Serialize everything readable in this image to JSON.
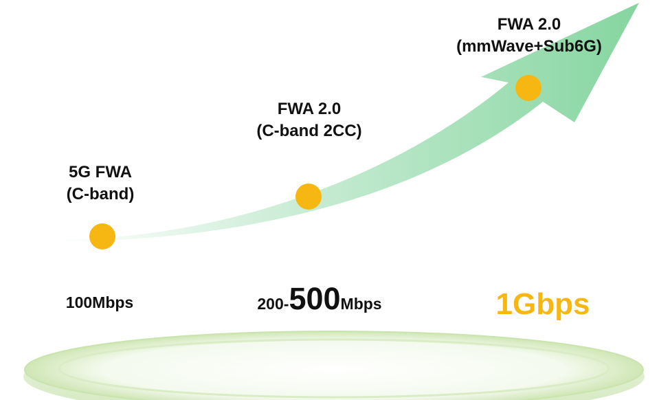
{
  "stages": [
    {
      "line1": "5G FWA",
      "line2": "(C-band)"
    },
    {
      "line1": "FWA 2.0",
      "line2": "(C-band 2CC)"
    },
    {
      "line1": "FWA 2.0",
      "line2": "(mmWave+Sub6G)"
    }
  ],
  "speeds": {
    "first": "100Mbps",
    "second_prefix": "200-",
    "second_big": "500",
    "second_suffix": "Mbps",
    "third": "1Gbps"
  },
  "colors": {
    "accent": "#F7B712",
    "arrow_green": "#8BD9A5",
    "platform_green": "#CDE8B8",
    "text": "#111111"
  },
  "icons": [
    "growth-arrow",
    "milestone-dot",
    "platform-disc"
  ]
}
